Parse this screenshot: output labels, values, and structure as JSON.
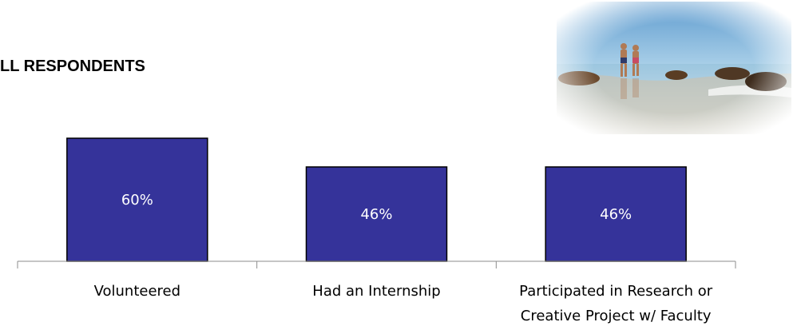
{
  "header": {
    "title": "LL RESPONDENTS",
    "photo_icon": "beach-photo"
  },
  "chart_data": {
    "type": "bar",
    "categories": [
      [
        "Volunteered"
      ],
      [
        "Had an Internship"
      ],
      [
        "Participated in Research or",
        "Creative Project w/ Faculty"
      ]
    ],
    "values": [
      60,
      46,
      46
    ],
    "value_labels": [
      "60%",
      "46%",
      "46%"
    ],
    "ylim": [
      0,
      60
    ],
    "grid": false,
    "legend": "none",
    "bar_color": "#35339a",
    "value_label_color": "#ffffff"
  }
}
